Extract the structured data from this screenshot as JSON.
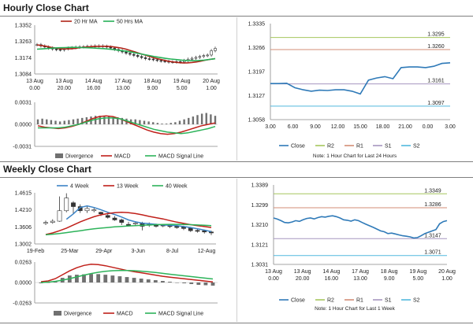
{
  "sections": {
    "hourly_title": "Hourly Close Chart",
    "weekly_title": "Weekly Close Chart"
  },
  "colors": {
    "ma20": "#b02418",
    "ma50": "#27b159",
    "close": "#2f7ab8",
    "r2": "#a6c65d",
    "r1": "#d38e76",
    "s1": "#a696bf",
    "s2": "#52b9dd",
    "div_bar": "#707070",
    "macd": "#c0201a",
    "signal": "#2db35a",
    "wk4": "#3c84c6",
    "wk13": "#c0201a",
    "wk40": "#2db35a",
    "candle": "#333333"
  },
  "chart_data": [
    {
      "id": "hourly-candle",
      "type": "candlestick",
      "title": "Hourly Close Chart",
      "legend": [
        "20 Hr MA",
        "50 Hrs MA"
      ],
      "yticks": [
        "1.3352",
        "1.3263",
        "1.3174",
        "1.3084"
      ],
      "ylim": [
        1.3084,
        1.3352
      ],
      "xticks": [
        [
          "13 Aug",
          "0.00"
        ],
        [
          "13 Aug",
          "20.00"
        ],
        [
          "14 Aug",
          "16.00"
        ],
        [
          "17 Aug",
          "13.00"
        ],
        [
          "18 Aug",
          "9.00"
        ],
        [
          "19 Aug",
          "5.00"
        ],
        [
          "20 Aug",
          "1.00"
        ]
      ],
      "close": [
        1.3245,
        1.3238,
        1.3232,
        1.3226,
        1.3221,
        1.3218,
        1.3216,
        1.3222,
        1.3226,
        1.3228,
        1.3231,
        1.3233,
        1.3234,
        1.3236,
        1.3236,
        1.3238,
        1.3238,
        1.3236,
        1.3232,
        1.3226,
        1.3219,
        1.3212,
        1.3205,
        1.3198,
        1.3192,
        1.3186,
        1.318,
        1.3174,
        1.3168,
        1.3166,
        1.3162,
        1.3158,
        1.3155,
        1.3153,
        1.315,
        1.315,
        1.3152,
        1.315,
        1.3158,
        1.3165,
        1.317,
        1.3175,
        1.318,
        1.3185,
        1.3188,
        1.3212,
        1.3225
      ],
      "ma20": [
        1.3244,
        1.324,
        1.3236,
        1.323,
        1.3226,
        1.3222,
        1.3222,
        1.3222,
        1.3224,
        1.3228,
        1.3231,
        1.3233,
        1.3235,
        1.3236,
        1.3236,
        1.3236,
        1.3234,
        1.323,
        1.3226,
        1.322,
        1.3212,
        1.3204,
        1.3196,
        1.3188,
        1.318,
        1.3172,
        1.3166,
        1.316,
        1.3154,
        1.315,
        1.3147,
        1.3145,
        1.3145,
        1.3147,
        1.315,
        1.3155,
        1.316,
        1.3165,
        1.3168
      ],
      "ma50": [
        1.322,
        1.3222,
        1.3224,
        1.3226,
        1.3228,
        1.3229,
        1.323,
        1.323,
        1.3229,
        1.3228,
        1.3227,
        1.3225,
        1.3223,
        1.322,
        1.3217,
        1.3213,
        1.3209,
        1.3204,
        1.3198,
        1.3192,
        1.3186,
        1.318,
        1.3175,
        1.317,
        1.3166,
        1.3163,
        1.316,
        1.3158,
        1.3157,
        1.3158,
        1.316,
        1.3164,
        1.3168
      ]
    },
    {
      "id": "hourly-macd",
      "type": "bar",
      "yticks": [
        "0.0031",
        "0.0000",
        "-0.0031"
      ],
      "ylim": [
        -0.0031,
        0.0031
      ],
      "legend": [
        "Divergence",
        "MACD",
        "MACD Signal Line"
      ],
      "divergence": [
        0.0007,
        0.0008,
        0.0007,
        0.0006,
        0.0005,
        0.0004,
        0.0005,
        0.0006,
        0.0007,
        0.0008,
        0.0009,
        0.001,
        0.0011,
        0.0012,
        0.0012,
        0.0011,
        0.0011,
        0.001,
        0.001,
        0.0009,
        0.0008,
        0.0007,
        0.0007,
        0.0006,
        0.0005,
        0.0004,
        0.0003,
        0.0002,
        0.0001,
        0.0001,
        0.0002,
        0.0003,
        0.0005,
        0.0007,
        0.0009,
        0.0011,
        0.0013,
        0.0015,
        0.0016,
        0.0014,
        0.0012
      ],
      "macd": [
        -0.0002,
        -0.0004,
        -0.0005,
        -0.0006,
        -0.0005,
        -0.0003,
        0.0,
        0.0004,
        0.0008,
        0.0011,
        0.0012,
        0.0011,
        0.0008,
        0.0004,
        0.0,
        -0.0004,
        -0.0008,
        -0.0011,
        -0.0013,
        -0.0014,
        -0.0013,
        -0.0011,
        -0.0008,
        -0.0005,
        -0.0002,
        0.0,
        0.0002
      ],
      "signal": [
        -0.0005,
        -0.0005,
        -0.0005,
        -0.0005,
        -0.0004,
        -0.0002,
        0.0,
        0.0003,
        0.0006,
        0.0008,
        0.0009,
        0.0009,
        0.0008,
        0.0005,
        0.0002,
        -0.0001,
        -0.0004,
        -0.0007,
        -0.0009,
        -0.0011,
        -0.0012,
        -0.0013,
        -0.0012,
        -0.001,
        -0.0008,
        -0.0006,
        -0.0003
      ]
    },
    {
      "id": "hourly-close",
      "type": "line",
      "yticks": [
        "1.3335",
        "1.3266",
        "1.3197",
        "1.3127",
        "1.3058"
      ],
      "ylim": [
        1.3058,
        1.3335
      ],
      "xticks": [
        "3.00",
        "6.00",
        "9.00",
        "12.00",
        "15.00",
        "18.00",
        "21.00",
        "0.00",
        "3.00"
      ],
      "levels": [
        {
          "name": "R2",
          "value": 1.3295,
          "label": "1.3295"
        },
        {
          "name": "R1",
          "value": 1.326,
          "label": "1.3260"
        },
        {
          "name": "S1",
          "value": 1.3161,
          "label": "1.3161"
        },
        {
          "name": "S2",
          "value": 1.3097,
          "label": "1.3097"
        }
      ],
      "close": [
        1.3162,
        1.3162,
        1.3163,
        1.315,
        1.3144,
        1.314,
        1.3143,
        1.3142,
        1.3144,
        1.3144,
        1.314,
        1.3132,
        1.3172,
        1.3178,
        1.3182,
        1.3176,
        1.3208,
        1.321,
        1.321,
        1.3208,
        1.3212,
        1.322,
        1.3222
      ],
      "legend": [
        "Close",
        "R2",
        "R1",
        "S1",
        "S2"
      ],
      "note": "Note: 1 Hour Chart for Last 24 Hours"
    },
    {
      "id": "weekly-candle",
      "type": "candlestick",
      "title": "Weekly Close Chart",
      "legend": [
        "4 Week",
        "13 Week",
        "40 Week"
      ],
      "yticks": [
        "1.4615",
        "1.4210",
        "1.3606",
        "1.3002"
      ],
      "ylim": [
        1.3002,
        1.4615
      ],
      "xticks": [
        "19-Feb",
        "25-Mar",
        "29-Apr",
        "3-Jun",
        "8-Jul",
        "12-Aug"
      ],
      "candles": [
        {
          "o": 1.365,
          "c": 1.368,
          "h": 1.374,
          "l": 1.36
        },
        {
          "o": 1.368,
          "c": 1.372,
          "h": 1.378,
          "l": 1.364
        },
        {
          "o": 1.372,
          "c": 1.405,
          "h": 1.45,
          "l": 1.37
        },
        {
          "o": 1.405,
          "c": 1.445,
          "h": 1.46,
          "l": 1.4
        },
        {
          "o": 1.43,
          "c": 1.418,
          "h": 1.435,
          "l": 1.395
        },
        {
          "o": 1.418,
          "c": 1.405,
          "h": 1.425,
          "l": 1.398
        },
        {
          "o": 1.405,
          "c": 1.412,
          "h": 1.42,
          "l": 1.398
        },
        {
          "o": 1.405,
          "c": 1.408,
          "h": 1.415,
          "l": 1.4
        },
        {
          "o": 1.4,
          "c": 1.395,
          "h": 1.402,
          "l": 1.388
        },
        {
          "o": 1.39,
          "c": 1.384,
          "h": 1.398,
          "l": 1.38
        },
        {
          "o": 1.382,
          "c": 1.376,
          "h": 1.388,
          "l": 1.373
        },
        {
          "o": 1.376,
          "c": 1.368,
          "h": 1.38,
          "l": 1.36
        },
        {
          "o": 1.362,
          "c": 1.36,
          "h": 1.37,
          "l": 1.355
        },
        {
          "o": 1.365,
          "c": 1.366,
          "h": 1.372,
          "l": 1.358
        },
        {
          "o": 1.365,
          "c": 1.356,
          "h": 1.37,
          "l": 1.343
        },
        {
          "o": 1.362,
          "c": 1.359,
          "h": 1.368,
          "l": 1.354
        },
        {
          "o": 1.36,
          "c": 1.356,
          "h": 1.364,
          "l": 1.352
        },
        {
          "o": 1.36,
          "c": 1.357,
          "h": 1.363,
          "l": 1.353
        },
        {
          "o": 1.358,
          "c": 1.355,
          "h": 1.362,
          "l": 1.35
        },
        {
          "o": 1.356,
          "c": 1.352,
          "h": 1.36,
          "l": 1.348
        },
        {
          "o": 1.354,
          "c": 1.349,
          "h": 1.358,
          "l": 1.344
        },
        {
          "o": 1.35,
          "c": 1.342,
          "h": 1.354,
          "l": 1.338
        },
        {
          "o": 1.343,
          "c": 1.341,
          "h": 1.348,
          "l": 1.336
        },
        {
          "o": 1.342,
          "c": 1.338,
          "h": 1.345,
          "l": 1.333
        },
        {
          "o": 1.338,
          "c": 1.336,
          "h": 1.342,
          "l": 1.328
        }
      ],
      "wk4": [
        null,
        null,
        null,
        1.378,
        1.395,
        1.415,
        1.42,
        1.415,
        1.408,
        1.4,
        1.393,
        1.385,
        1.376,
        1.37,
        1.366,
        1.364,
        1.362,
        1.36,
        1.359,
        1.358,
        1.355,
        1.352,
        1.348,
        1.344,
        1.339
      ],
      "wk13": [
        1.33,
        1.335,
        1.342,
        1.35,
        1.36,
        1.37,
        1.378,
        1.386,
        1.392,
        1.396,
        1.399,
        1.4,
        1.399,
        1.396,
        1.392,
        1.387,
        1.383,
        1.379,
        1.374,
        1.369,
        1.365,
        1.361,
        1.358,
        1.355,
        1.352
      ],
      "wk40": [
        1.329,
        1.331,
        1.333,
        1.336,
        1.339,
        1.342,
        1.345,
        1.348,
        1.35,
        1.352,
        1.354,
        1.3555,
        1.357,
        1.358,
        1.359,
        1.36,
        1.361,
        1.3615,
        1.362,
        1.362,
        1.3615,
        1.361,
        1.36,
        1.359,
        1.358
      ]
    },
    {
      "id": "weekly-macd",
      "type": "bar",
      "yticks": [
        "0.0263",
        "0.0000",
        "-0.0263"
      ],
      "ylim": [
        -0.0263,
        0.0263
      ],
      "legend": [
        "Divergence",
        "MACD",
        "MACD Signal Line"
      ],
      "divergence": [
        -0.001,
        -0.0005,
        0.002,
        0.006,
        0.009,
        0.01,
        0.0105,
        0.011,
        0.0108,
        0.01,
        0.009,
        0.008,
        0.007,
        0.006,
        0.005,
        0.004,
        0.003,
        0.002,
        0.001,
        0.0,
        -0.001,
        -0.002,
        -0.003,
        -0.0035,
        -0.004
      ],
      "macd": [
        0.001,
        0.002,
        0.005,
        0.01,
        0.015,
        0.019,
        0.022,
        0.0235,
        0.023,
        0.0215,
        0.0195,
        0.0175,
        0.0155,
        0.014,
        0.0125,
        0.011,
        0.0095,
        0.008,
        0.0068,
        0.0058,
        0.0048,
        0.0038,
        0.0028,
        0.0018,
        0.0008
      ],
      "signal": [
        0.0,
        0.0005,
        0.0015,
        0.003,
        0.005,
        0.0072,
        0.0095,
        0.0115,
        0.0132,
        0.0145,
        0.0152,
        0.0155,
        0.0155,
        0.0152,
        0.0146,
        0.0138,
        0.0128,
        0.0117,
        0.0106,
        0.0096,
        0.0086,
        0.0076,
        0.0066,
        0.0056,
        0.0046
      ]
    },
    {
      "id": "weekly-close",
      "type": "line",
      "yticks": [
        "1.3389",
        "1.3299",
        "1.3210",
        "1.3121",
        "1.3031"
      ],
      "ylim": [
        1.3031,
        1.3389
      ],
      "xticks": [
        [
          "13 Aug",
          "0.00"
        ],
        [
          "13 Aug",
          "20.00"
        ],
        [
          "14 Aug",
          "16.00"
        ],
        [
          "17 Aug",
          "13.00"
        ],
        [
          "18 Aug",
          "9.00"
        ],
        [
          "19 Aug",
          "5.00"
        ],
        [
          "20 Aug",
          "1.00"
        ]
      ],
      "levels": [
        {
          "name": "R2",
          "value": 1.3349,
          "label": "1.3349"
        },
        {
          "name": "R1",
          "value": 1.3286,
          "label": "1.3286"
        },
        {
          "name": "S1",
          "value": 1.3147,
          "label": "1.3147"
        },
        {
          "name": "S2",
          "value": 1.3071,
          "label": "1.3071"
        }
      ],
      "close": [
        1.324,
        1.3235,
        1.3228,
        1.322,
        1.3218,
        1.3222,
        1.3228,
        1.3225,
        1.3232,
        1.3238,
        1.324,
        1.3236,
        1.3242,
        1.3246,
        1.3244,
        1.3248,
        1.325,
        1.3246,
        1.324,
        1.3232,
        1.323,
        1.3226,
        1.3232,
        1.3228,
        1.322,
        1.3212,
        1.3205,
        1.3198,
        1.319,
        1.3182,
        1.3178,
        1.317,
        1.3172,
        1.3168,
        1.3164,
        1.316,
        1.3158,
        1.3155,
        1.315,
        1.3152,
        1.316,
        1.317,
        1.3176,
        1.3182,
        1.3188,
        1.3214,
        1.3224,
        1.3228
      ],
      "legend": [
        "Close",
        "R2",
        "R1",
        "S1",
        "S2"
      ],
      "note": "Note: 1 Hour Chart for  Last 1 Week"
    }
  ]
}
